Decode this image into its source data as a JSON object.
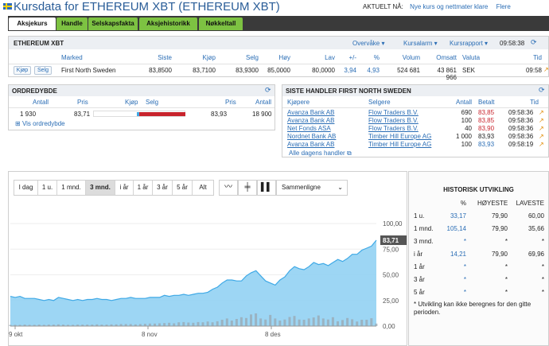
{
  "header": {
    "title": "Kursdata for ETHEREUM XBT (ETHEREUM XBT)",
    "updated_label": "AKTUELT NÅ:",
    "updated_link": "Nye kurs og nettmater klare",
    "more_link": "Flere"
  },
  "tabs": [
    "Aksjekurs",
    "Handle",
    "Selskapsfakta",
    "Aksjehistorikk",
    "Nøkkeltall"
  ],
  "quote": {
    "title": "ETHEREUM XBT",
    "menus": [
      "Overvåke",
      "Kursalarm",
      "Kursrapport"
    ],
    "time": "09:58:38",
    "columns": [
      "Marked",
      "Siste",
      "Kjøp",
      "Selg",
      "Høy",
      "Lav",
      "+/-",
      "%",
      "Volum",
      "Omsatt",
      "Valuta",
      "Tid"
    ],
    "buy_button": "Kjøp",
    "sell_button": "Selg",
    "row": {
      "market": "First North Sweden",
      "last": "83,8500",
      "bid": "83,7100",
      "ask": "83,9300",
      "high": "85,0000",
      "low": "80,0000",
      "change": "3,94",
      "pct": "4,93",
      "volume": "524 681",
      "turnover": "43 861 966",
      "currency": "SEK",
      "time": "09:58"
    }
  },
  "orderbook": {
    "title": "ORDREDYBDE",
    "columns": [
      "Antall",
      "Pris",
      "Kjøp",
      "Selg",
      "Pris",
      "Antall"
    ],
    "row": {
      "bid_qty": "1 930",
      "bid_price": "83,71",
      "ask_price": "83,93",
      "ask_qty": "18 900"
    },
    "more": "Vis ordredybde",
    "bid_fill": 0.03,
    "ask_fill": 0.51
  },
  "trades": {
    "title": "SISTE HANDLER FIRST NORTH SWEDEN",
    "columns": [
      "Kjøpere",
      "Selgere",
      "Antall",
      "Betalt",
      "Tid"
    ],
    "rows": [
      {
        "buyer": "Avanza Bank AB",
        "seller": "Flow Traders B.V.",
        "qty": "690",
        "price": "83,85",
        "time": "09:58:36",
        "color": "#c8232c"
      },
      {
        "buyer": "Avanza Bank AB",
        "seller": "Flow Traders B.V.",
        "qty": "100",
        "price": "83,85",
        "time": "09:58:36",
        "color": "#c8232c"
      },
      {
        "buyer": "Net Fonds ASA",
        "seller": "Flow Traders B.V.",
        "qty": "40",
        "price": "83,90",
        "time": "09:58:36",
        "color": "#c8232c"
      },
      {
        "buyer": "Nordnet Bank AB",
        "seller": "Timber Hill Europe AG",
        "qty": "1 000",
        "price": "83,93",
        "time": "09:58:36",
        "color": "#222222"
      },
      {
        "buyer": "Avanza Bank AB",
        "seller": "Timber Hill Europe AG",
        "qty": "100",
        "price": "83,93",
        "time": "09:58:19",
        "color": "#2a6db5"
      }
    ],
    "more": "Alle dagens handler"
  },
  "chart_toolbar": {
    "ranges": [
      "I dag",
      "1 u.",
      "1 mnd.",
      "3 mnd.",
      "i år",
      "1 år",
      "3 år",
      "5 år",
      "Alt"
    ],
    "selected": "3 mnd.",
    "compare": "Sammenligne"
  },
  "chart_data": {
    "type": "area",
    "last_label": "83,71",
    "x_tick_labels": [
      "9 okt",
      "8 nov",
      "8 des"
    ],
    "y_tick_labels": [
      "100,00",
      "75,00",
      "50,00",
      "25,00",
      "0,00"
    ],
    "ylim": [
      0,
      100
    ],
    "series": [
      {
        "values": [
          29,
          28,
          29,
          27,
          27,
          27,
          26,
          25,
          26,
          25,
          28,
          27,
          26,
          25,
          26,
          25,
          26,
          26,
          27,
          26,
          26,
          25,
          26,
          27,
          27,
          28,
          27,
          27,
          27,
          28,
          28,
          28,
          30,
          29,
          30,
          30,
          31,
          30,
          31,
          32,
          32,
          33,
          36,
          38,
          42,
          45,
          45,
          44,
          44,
          49,
          52,
          54,
          49,
          44,
          42,
          40,
          45,
          48,
          54,
          58,
          56,
          55,
          58,
          62,
          60,
          61,
          59,
          62,
          65,
          63,
          66,
          70,
          70,
          74,
          76,
          78,
          83.71
        ]
      }
    ],
    "volume_series": [
      0.5,
      0.5,
      0.5,
      0.6,
      0.5,
      0.5,
      0.6,
      0.5,
      0.6,
      0.6,
      0.7,
      0.6,
      0.5,
      0.5,
      0.6,
      0.6,
      0.6,
      0.6,
      0.7,
      0.6,
      0.6,
      0.7,
      0.7,
      0.8,
      0.8,
      0.8,
      0.7,
      0.8,
      0.9,
      1.0,
      1.0,
      1.1,
      1.2,
      1.3,
      1.1,
      1.5,
      1.6,
      1.4,
      1.3,
      1.6,
      1.5,
      1.8,
      1.5,
      1.9,
      2.5,
      3.0,
      2.2,
      2.8,
      3.5,
      3.2,
      4.6,
      5.0,
      3.0,
      2.6,
      4.4,
      3.0,
      2.2,
      2.6,
      3.6,
      4.0,
      2.6,
      2.5,
      3.0,
      3.4,
      4.2,
      3.0,
      2.6,
      3.5,
      1.9,
      2.4,
      3.2,
      2.7,
      1.8,
      2.5,
      2.5,
      3.1,
      1.0
    ]
  },
  "hist": {
    "title": "HISTORISK UTVIKLING",
    "columns": [
      "%",
      "HØYESTE",
      "LAVESTE"
    ],
    "rows": [
      {
        "label": "1 u.",
        "pct": "33,17",
        "high": "79,90",
        "low": "60,00"
      },
      {
        "label": "1 mnd.",
        "pct": "105,14",
        "high": "79,90",
        "low": "35,66"
      },
      {
        "label": "3 mnd.",
        "pct": "*",
        "high": "*",
        "low": "*"
      },
      {
        "label": "i år",
        "pct": "14,21",
        "high": "79,90",
        "low": "69,96"
      },
      {
        "label": "1 år",
        "pct": "*",
        "high": "*",
        "low": "*"
      },
      {
        "label": "3 år",
        "pct": "*",
        "high": "*",
        "low": "*"
      },
      {
        "label": "5 år",
        "pct": "*",
        "high": "*",
        "low": "*"
      }
    ],
    "footnote": "* Utvikling kan ikke beregnes for den gitte perioden."
  },
  "colors": {
    "accent": "#7dc242",
    "link": "#2a6db5",
    "up": "#3d9a2a",
    "down": "#c8232c",
    "area": "#8ccff2",
    "line": "#3fa9e6"
  }
}
